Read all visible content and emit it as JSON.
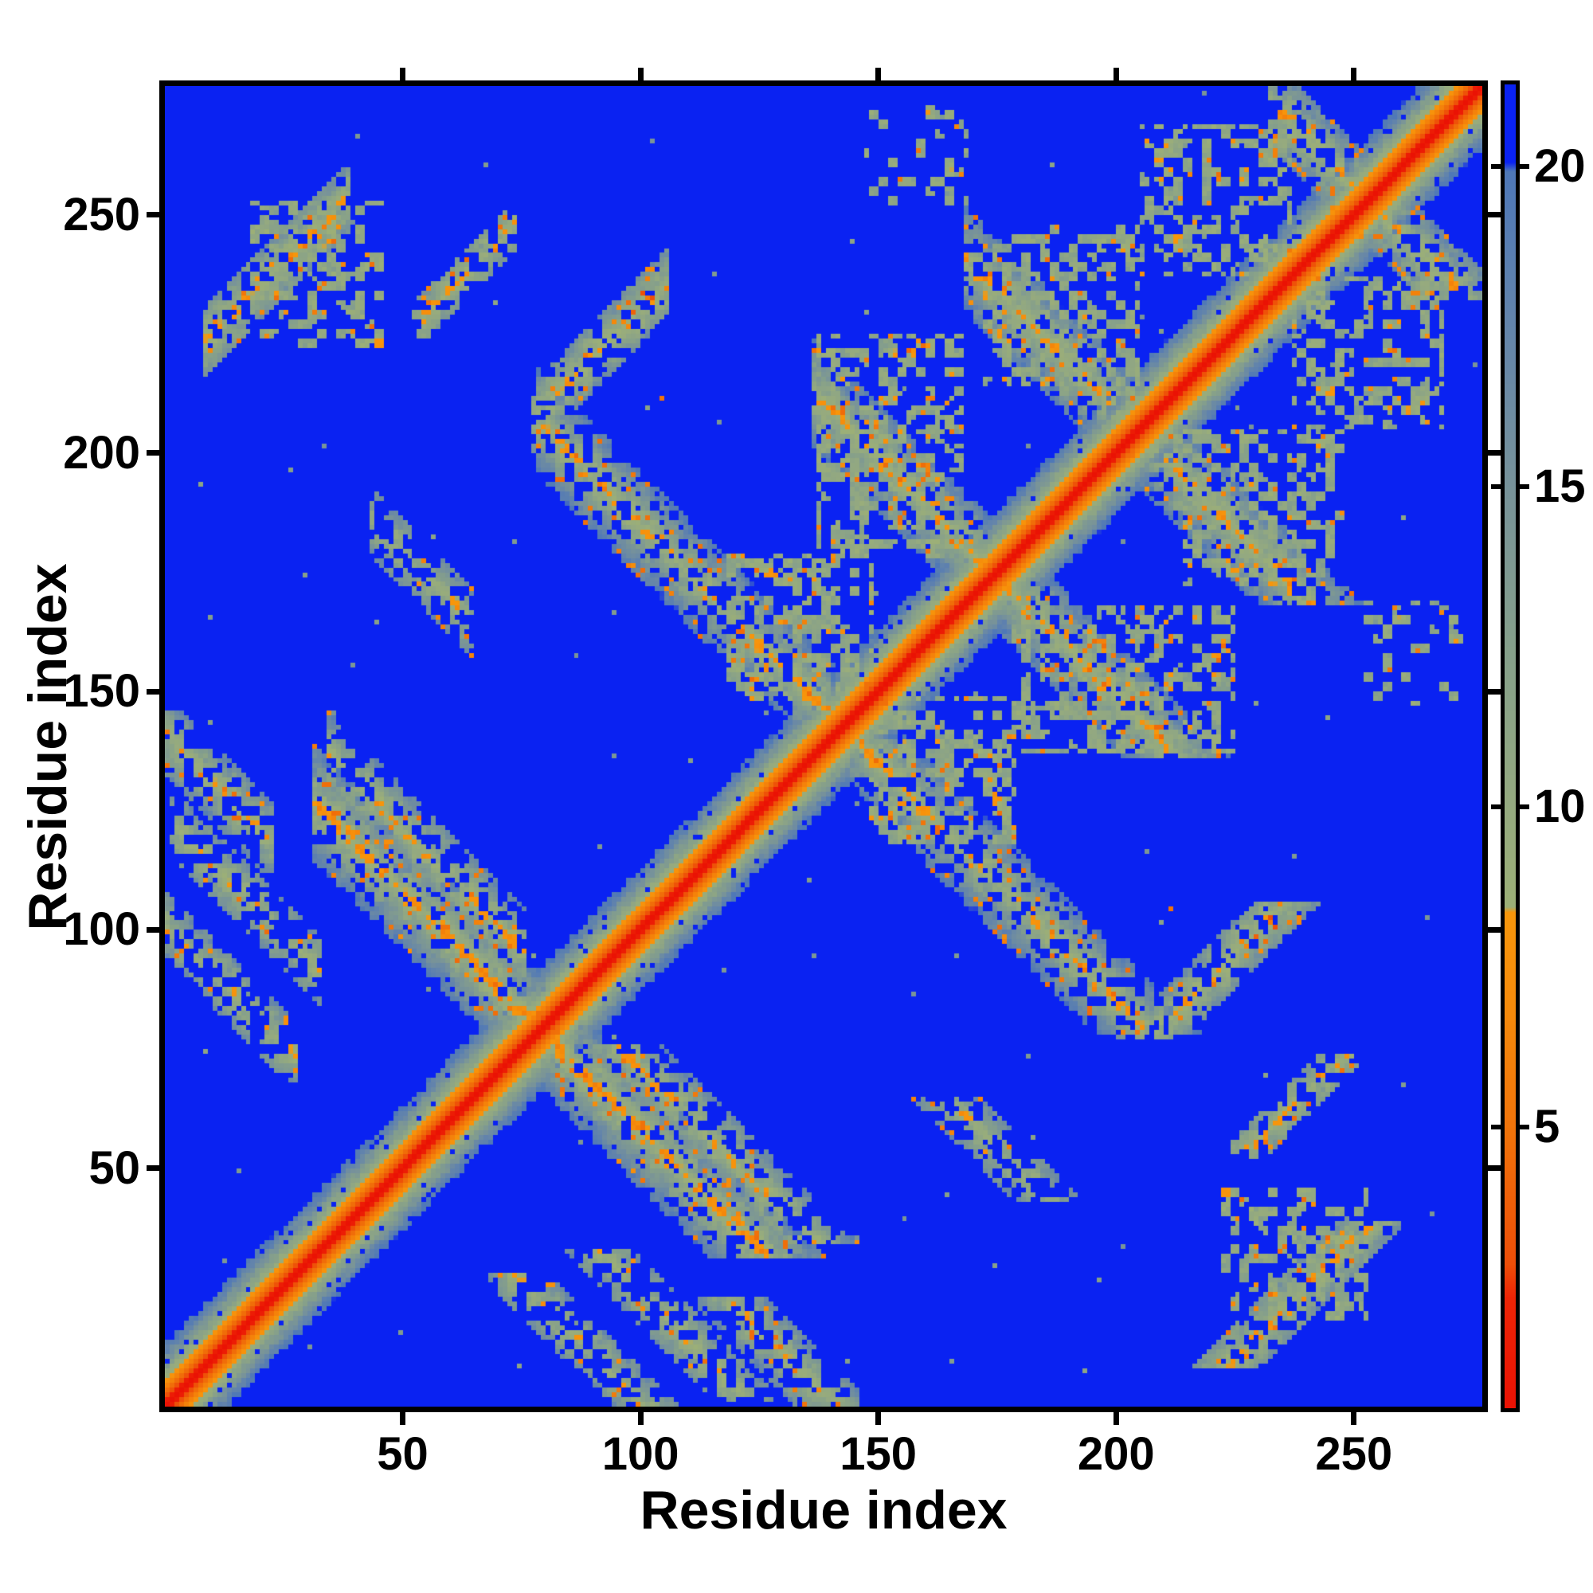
{
  "figure": {
    "background": "#ffffff",
    "frame_color": "#000000",
    "text_color": "#000000"
  },
  "chart_data": {
    "type": "heatmap",
    "title": "",
    "xlabel": "Residue index",
    "ylabel": "Residue index",
    "n_residues": 277,
    "axis_range": [
      0,
      277
    ],
    "x_ticks": [
      50,
      100,
      150,
      200,
      250
    ],
    "y_ticks": [
      50,
      100,
      150,
      200,
      250
    ],
    "grid": false,
    "legend_position": "none",
    "colorbar": {
      "position": "right",
      "ticks": [
        5,
        10,
        15,
        20
      ],
      "vmin": 0.61,
      "vmax": 21.28
    },
    "colormap_stops": [
      [
        0.55,
        "#ea1204"
      ],
      [
        2.35,
        "#ee2506"
      ],
      [
        2.85,
        "#ee4e08"
      ],
      [
        5.0,
        "#f1740a"
      ],
      [
        7.0,
        "#f68c0b"
      ],
      [
        8.36,
        "#f8970c"
      ],
      [
        8.44,
        "#9db077"
      ],
      [
        10.0,
        "#95aa80"
      ],
      [
        12.5,
        "#86a08b"
      ],
      [
        15.0,
        "#78939a"
      ],
      [
        17.5,
        "#6485ab"
      ],
      [
        19.93,
        "#4f78b8"
      ],
      [
        20.07,
        "#0a22f2"
      ],
      [
        21.4,
        "#0a22f2"
      ]
    ],
    "background_value": 22,
    "generator": {
      "seed": 7.13,
      "diag_slope": 1.55,
      "diag_clean_halfwidth": 6,
      "feature_noise_amp": 5.5,
      "hole_prob": 0.1,
      "orange_speckle_prob": 0.045,
      "stray_speckle_prob": 0.0015,
      "perp_slope": 1.35,
      "features": [
        {
          "type": "anti",
          "c": 157,
          "i0": 33,
          "i1": 78,
          "base": 7.8,
          "hw": 9,
          "den": 0.92
        },
        {
          "type": "anti",
          "c": 170,
          "i0": 36,
          "i1": 73,
          "base": 8.6,
          "hw": 7,
          "den": 0.75
        },
        {
          "type": "anti",
          "c": 284,
          "i0": 80,
          "i1": 141,
          "base": 8.6,
          "hw": 8,
          "den": 0.8
        },
        {
          "type": "anti",
          "c": 348,
          "i0": 138,
          "i1": 173,
          "base": 8.4,
          "hw": 8,
          "den": 0.85
        },
        {
          "type": "anti",
          "c": 408,
          "i0": 170,
          "i1": 204,
          "base": 8.2,
          "hw": 8,
          "den": 0.85
        },
        {
          "type": "anti",
          "c": 505,
          "i0": 234,
          "i1": 252,
          "base": 8.5,
          "hw": 7,
          "den": 0.8
        },
        {
          "type": "anti",
          "c": 100,
          "i0": 2,
          "i1": 25,
          "base": 9.2,
          "hw": 5,
          "den": 0.6
        },
        {
          "type": "anti",
          "c": 123,
          "i0": 3,
          "i1": 30,
          "base": 9.0,
          "hw": 5,
          "den": 0.6
        },
        {
          "type": "anti",
          "c": 228,
          "i0": 45,
          "i1": 62,
          "base": 9.2,
          "hw": 5,
          "den": 0.55
        },
        {
          "type": "anti",
          "c": 140,
          "i0": 0,
          "i1": 20,
          "base": 9.0,
          "hw": 6,
          "den": 0.6
        },
        {
          "type": "para",
          "k": 215,
          "i0": 10,
          "i1": 36,
          "base": 8.2,
          "hw": 5,
          "den": 0.8
        },
        {
          "type": "para",
          "k": 130,
          "i0": 79,
          "i1": 103,
          "base": 8.4,
          "hw": 5,
          "den": 0.75
        },
        {
          "type": "para",
          "k": 174,
          "i0": 54,
          "i1": 71,
          "base": 8.8,
          "hw": 4,
          "den": 0.6
        },
        {
          "type": "block",
          "i0": 18,
          "i1": 45,
          "j0": 222,
          "j1": 252,
          "base": 9.6,
          "den": 0.42
        },
        {
          "type": "block",
          "i0": 137,
          "i1": 167,
          "j0": 178,
          "j1": 224,
          "base": 9.5,
          "den": 0.45
        },
        {
          "type": "block",
          "i0": 172,
          "i1": 204,
          "j0": 212,
          "j1": 247,
          "base": 9.5,
          "den": 0.45
        },
        {
          "type": "block",
          "i0": 205,
          "i1": 236,
          "j0": 237,
          "j1": 268,
          "base": 9.6,
          "den": 0.4
        },
        {
          "type": "block",
          "i0": 118,
          "i1": 148,
          "j0": 148,
          "j1": 178,
          "base": 9.4,
          "den": 0.45
        },
        {
          "type": "block",
          "i0": 147,
          "i1": 168,
          "j0": 252,
          "j1": 272,
          "base": 9.8,
          "den": 0.2
        }
      ],
      "dots": [
        [
          98,
          229,
          4
        ],
        [
          100,
          233,
          3
        ],
        [
          102,
          232,
          3
        ],
        [
          60,
          237,
          4.5
        ],
        [
          63,
          240,
          4.5
        ],
        [
          104,
          211,
          5
        ],
        [
          26,
          240,
          4.5
        ],
        [
          29,
          243,
          5
        ],
        [
          55,
          231,
          5
        ]
      ]
    }
  }
}
